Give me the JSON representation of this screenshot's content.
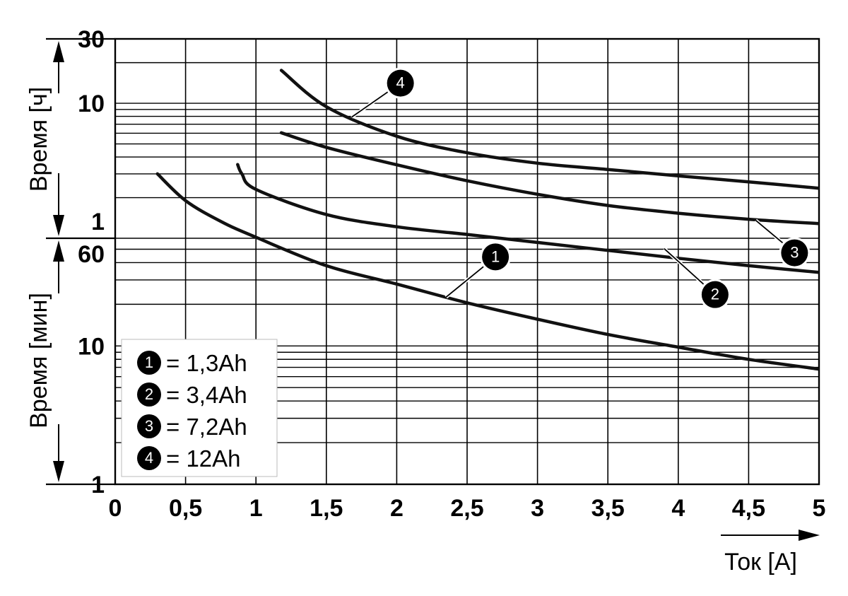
{
  "chart_data": {
    "type": "line",
    "title": "",
    "xlabel": "Ток [A]",
    "xlim": [
      0,
      5
    ],
    "x_ticks": [
      "0",
      "0,5",
      "1",
      "1,5",
      "2",
      "2,5",
      "3",
      "3,5",
      "4",
      "4,5",
      "5"
    ],
    "y_axes": [
      {
        "label": "Время [ч]",
        "unit": "h",
        "scale": "log",
        "range": [
          1,
          30
        ],
        "tick_labels": [
          "1",
          "10",
          "30"
        ]
      },
      {
        "label": "Время [мин]",
        "unit": "min",
        "scale": "log",
        "range": [
          1,
          60
        ],
        "tick_labels": [
          "1",
          "10",
          "60"
        ]
      }
    ],
    "grid": true,
    "legend_position": "bottom-left",
    "series": [
      {
        "marker": "1",
        "name": "= 1,3Ah",
        "x": [
          0.3,
          0.5,
          0.75,
          1.0,
          1.5,
          2.0,
          2.5,
          3.0,
          3.5,
          4.0,
          4.5,
          5.0
        ],
        "y_min": [
          180,
          114,
          80,
          61,
          38,
          28,
          20.5,
          15.6,
          12.1,
          9.8,
          8.0,
          6.8
        ]
      },
      {
        "marker": "2",
        "name": "= 3,4Ah",
        "x": [
          0.87,
          0.9,
          1.0,
          1.5,
          2.0,
          2.5,
          3.0,
          3.5,
          4.0,
          4.5,
          5.0
        ],
        "y_min": [
          211,
          180,
          138,
          90,
          73,
          64,
          56,
          49,
          43,
          38,
          34
        ]
      },
      {
        "marker": "3",
        "name": "= 7,2Ah",
        "x": [
          1.18,
          1.5,
          2.0,
          2.5,
          3.0,
          3.5,
          4.0,
          4.5,
          5.0
        ],
        "y_min": [
          363,
          283,
          210,
          160,
          127,
          105,
          92,
          83,
          77
        ]
      },
      {
        "marker": "4",
        "name": "= 12Ah",
        "x": [
          1.18,
          1.5,
          2.0,
          2.5,
          3.0,
          3.5,
          4.0,
          4.5,
          5.0
        ],
        "y_min": [
          1053,
          566,
          342,
          258,
          216,
          194,
          174,
          157,
          141
        ]
      }
    ],
    "legend": [
      {
        "marker": "1",
        "text": "= 1,3Ah"
      },
      {
        "marker": "2",
        "text": "= 3,4Ah"
      },
      {
        "marker": "3",
        "text": "= 7,2Ah"
      },
      {
        "marker": "4",
        "text": "= 12Ah"
      }
    ],
    "callouts": [
      {
        "marker": "1",
        "x": 2.35,
        "y_min": 22.5
      },
      {
        "marker": "2",
        "x": 3.9,
        "y_min": 50.5
      },
      {
        "marker": "3",
        "x": 4.55,
        "y_min": 81.5
      },
      {
        "marker": "4",
        "x": 1.68,
        "y_min": 474
      }
    ]
  }
}
